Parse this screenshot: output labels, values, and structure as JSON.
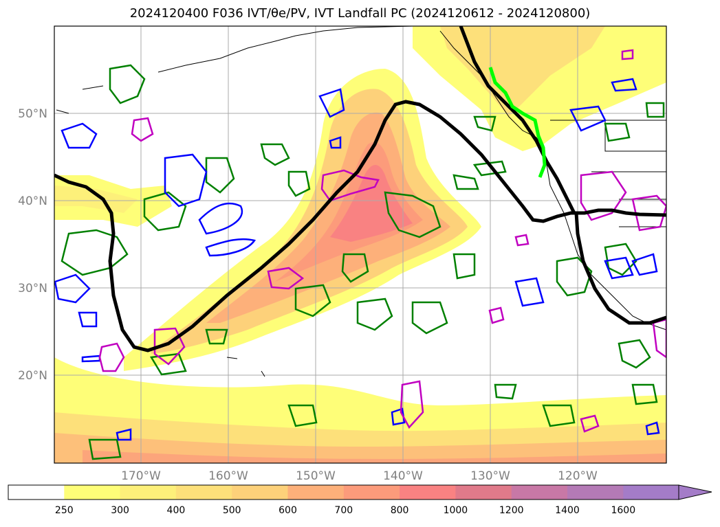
{
  "title": "2024120400 F036 IVT/θe/PV, IVT Landfall PC (2024120612 - 2024120800)",
  "map": {
    "lat_labels": [
      "50°N",
      "40°N",
      "30°N",
      "20°N"
    ],
    "lon_labels": [
      "170°W",
      "160°W",
      "150°W",
      "140°W",
      "130°W",
      "120°W"
    ],
    "grid": true
  },
  "colorbar": {
    "levels": [
      "250",
      "300",
      "400",
      "500",
      "600",
      "700",
      "800",
      "1000",
      "1200",
      "1400",
      "1600"
    ],
    "colors": [
      "#ffffff",
      "#fefe78",
      "#fdf07a",
      "#fde07a",
      "#fdd17a",
      "#fdb07a",
      "#fc9b7b",
      "#f98282",
      "#e07a8a",
      "#c878a6",
      "#b47ab6",
      "#a47cc8"
    ],
    "extend": "max"
  },
  "colors": {
    "pv_green": "#008000",
    "theta_blue": "#0000ff",
    "theta_magenta": "#c000c0",
    "black_contour": "#000000",
    "landfall_lime": "#00ff00"
  }
}
